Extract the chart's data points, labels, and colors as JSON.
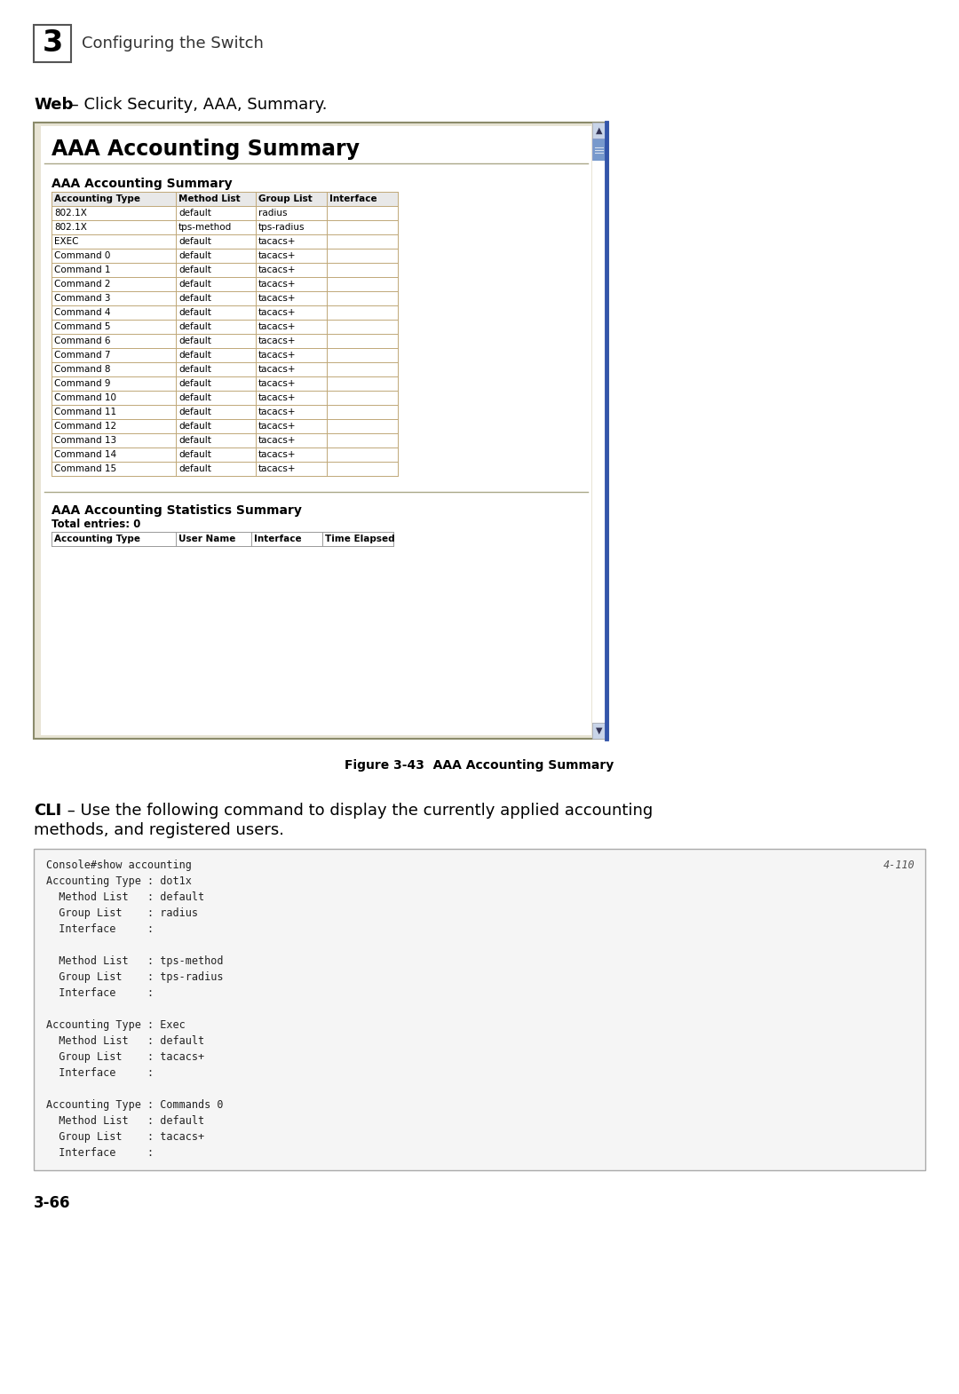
{
  "bg_color": "#ffffff",
  "header_number": "3",
  "header_text": "Configuring the Switch",
  "web_label": "Web",
  "web_text": " – Click Security, AAA, Summary.",
  "browser_title": "AAA Accounting Summary",
  "section1_title": "AAA Accounting Summary",
  "table1_headers": [
    "Accounting Type",
    "Method List",
    "Group List",
    "Interface"
  ],
  "table1_rows": [
    [
      "802.1X",
      "default",
      "radius",
      ""
    ],
    [
      "802.1X",
      "tps-method",
      "tps-radius",
      ""
    ],
    [
      "EXEC",
      "default",
      "tacacs+",
      ""
    ],
    [
      "Command 0",
      "default",
      "tacacs+",
      ""
    ],
    [
      "Command 1",
      "default",
      "tacacs+",
      ""
    ],
    [
      "Command 2",
      "default",
      "tacacs+",
      ""
    ],
    [
      "Command 3",
      "default",
      "tacacs+",
      ""
    ],
    [
      "Command 4",
      "default",
      "tacacs+",
      ""
    ],
    [
      "Command 5",
      "default",
      "tacacs+",
      ""
    ],
    [
      "Command 6",
      "default",
      "tacacs+",
      ""
    ],
    [
      "Command 7",
      "default",
      "tacacs+",
      ""
    ],
    [
      "Command 8",
      "default",
      "tacacs+",
      ""
    ],
    [
      "Command 9",
      "default",
      "tacacs+",
      ""
    ],
    [
      "Command 10",
      "default",
      "tacacs+",
      ""
    ],
    [
      "Command 11",
      "default",
      "tacacs+",
      ""
    ],
    [
      "Command 12",
      "default",
      "tacacs+",
      ""
    ],
    [
      "Command 13",
      "default",
      "tacacs+",
      ""
    ],
    [
      "Command 14",
      "default",
      "tacacs+",
      ""
    ],
    [
      "Command 15",
      "default",
      "tacacs+",
      ""
    ]
  ],
  "section2_title": "AAA Accounting Statistics Summary",
  "total_entries": "Total entries: 0",
  "table2_headers": [
    "Accounting Type",
    "User Name",
    "Interface",
    "Time Elapsed"
  ],
  "figure_caption": "Figure 3-43  AAA Accounting Summary",
  "cli_label": "CLI",
  "cli_text1": " – Use the following command to display the currently applied accounting",
  "cli_text2": "methods, and registered users.",
  "code_lines": [
    [
      "Console#show accounting",
      "4-110"
    ],
    [
      "Accounting Type : dot1x",
      ""
    ],
    [
      "  Method List   : default",
      ""
    ],
    [
      "  Group List    : radius",
      ""
    ],
    [
      "  Interface     :",
      ""
    ],
    [
      "",
      ""
    ],
    [
      "  Method List   : tps-method",
      ""
    ],
    [
      "  Group List    : tps-radius",
      ""
    ],
    [
      "  Interface     :",
      ""
    ],
    [
      "",
      ""
    ],
    [
      "Accounting Type : Exec",
      ""
    ],
    [
      "  Method List   : default",
      ""
    ],
    [
      "  Group List    : tacacs+",
      ""
    ],
    [
      "  Interface     :",
      ""
    ],
    [
      "",
      ""
    ],
    [
      "Accounting Type : Commands 0",
      ""
    ],
    [
      "  Method List   : default",
      ""
    ],
    [
      "  Group List    : tacacs+",
      ""
    ],
    [
      "  Interface     :",
      ""
    ]
  ],
  "page_number": "3-66"
}
